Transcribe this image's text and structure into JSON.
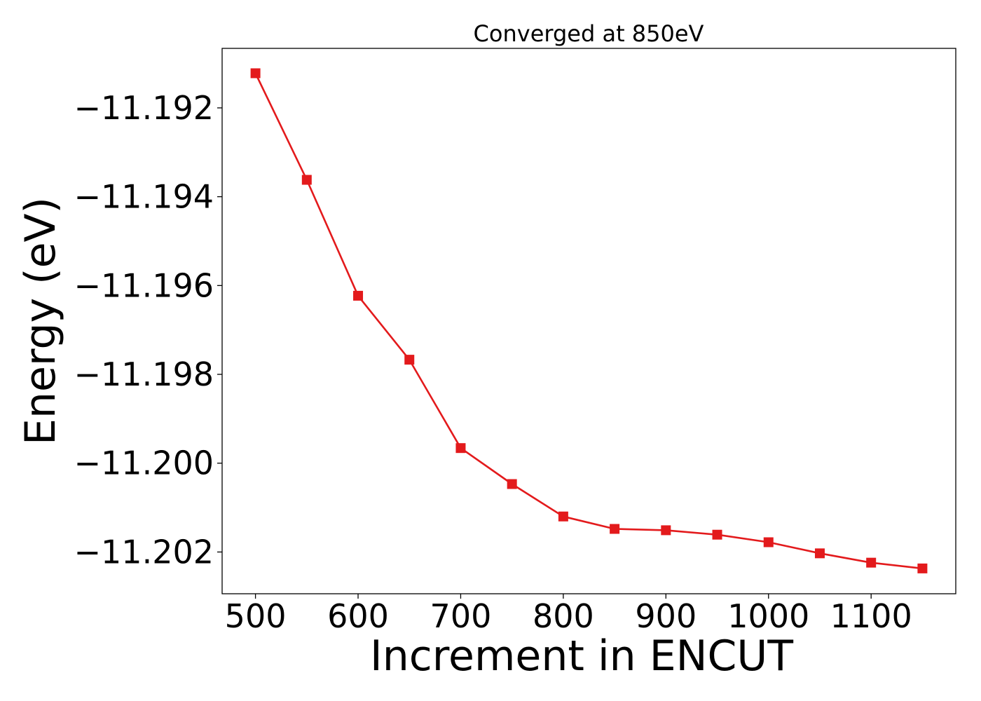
{
  "chart_data": {
    "type": "line",
    "title": "Converged at 850eV",
    "xlabel": "Increment in ENCUT",
    "ylabel": "Energy (eV)",
    "x": [
      500,
      550,
      600,
      650,
      700,
      750,
      800,
      850,
      900,
      950,
      1000,
      1050,
      1100,
      1150
    ],
    "series": [
      {
        "values": [
          -11.19122,
          -11.19362,
          -11.19623,
          -11.19767,
          -11.19966,
          -11.20047,
          -11.2012,
          -11.20148,
          -11.20151,
          -11.20161,
          -11.20178,
          -11.20203,
          -11.20224,
          -11.20237
        ],
        "color": "#e31a1c",
        "marker": "square"
      }
    ],
    "xticks": [
      500,
      600,
      700,
      800,
      900,
      1000,
      1100
    ],
    "xtick_labels": [
      "500",
      "600",
      "700",
      "800",
      "900",
      "1000",
      "1100"
    ],
    "yticks": [
      -11.192,
      -11.194,
      -11.196,
      -11.198,
      -11.2,
      -11.202
    ],
    "ytick_labels": [
      "−11.192",
      "−11.194",
      "−11.196",
      "−11.198",
      "−11.200",
      "−11.202"
    ],
    "xlim": [
      467.5,
      1182.5
    ],
    "ylim": [
      -11.20294,
      -11.19066
    ],
    "grid": false,
    "legend": "none"
  }
}
